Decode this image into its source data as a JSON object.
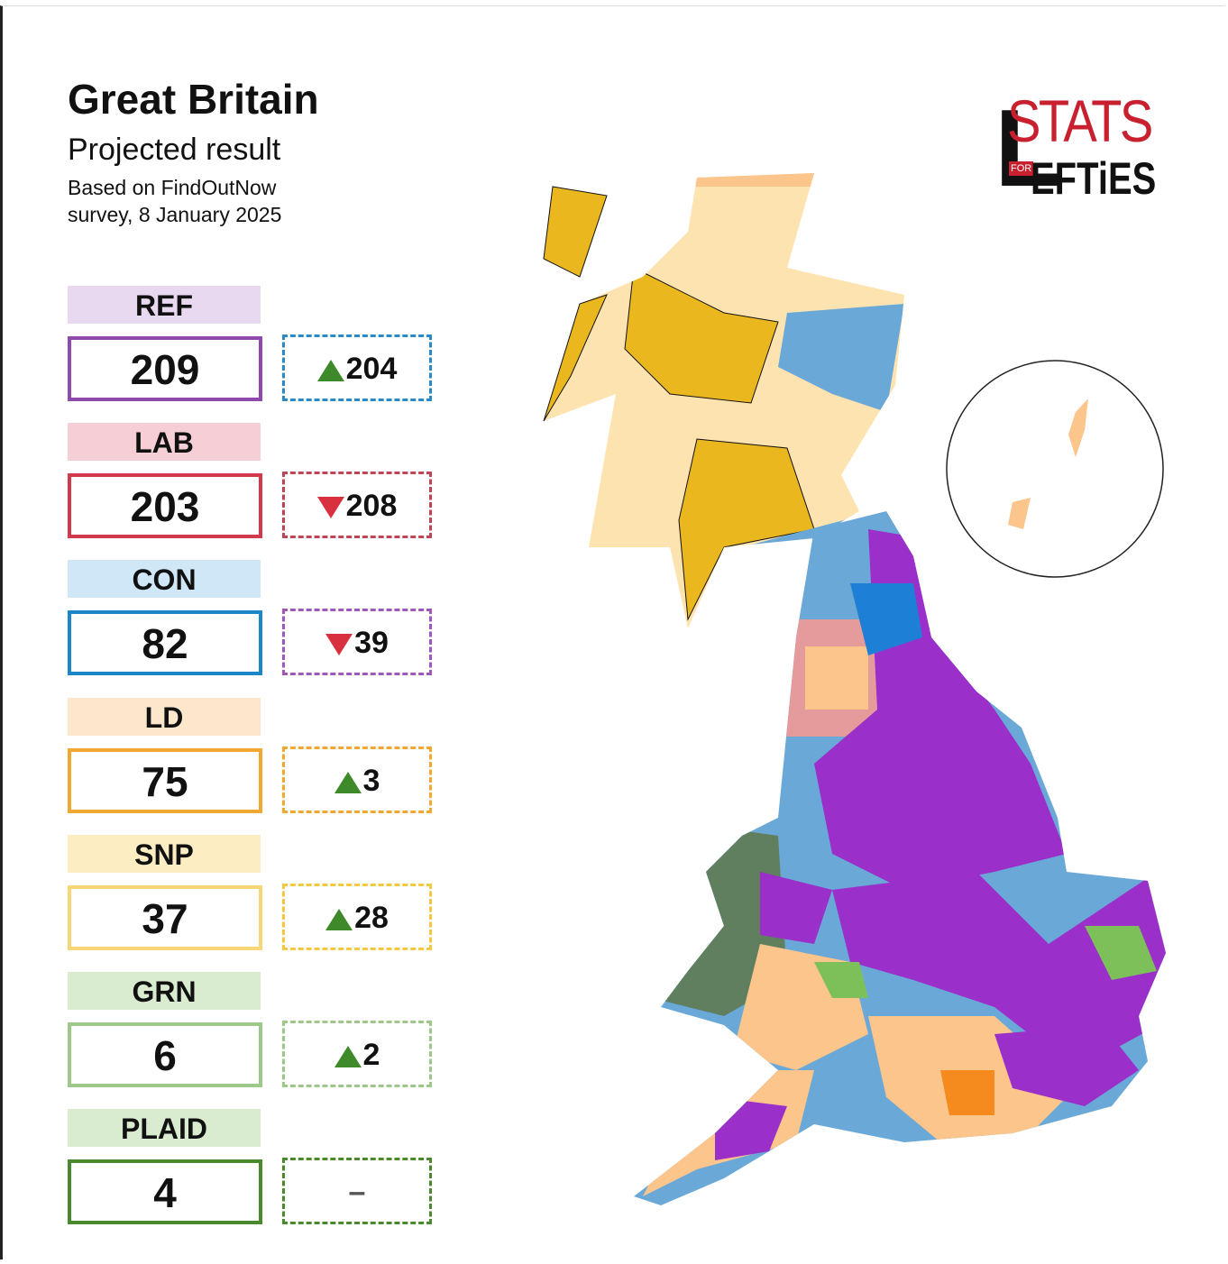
{
  "header": {
    "title": "Great Britain",
    "subtitle": "Projected result",
    "source_line1": "Based on FindOutNow",
    "source_line2": "survey, 8 January 2025"
  },
  "logo": {
    "big_letter": "L",
    "top": "STATS",
    "small": "FOR",
    "bottom": "EFTiES"
  },
  "parties": [
    {
      "name": "REF",
      "seats": 209,
      "change": 204,
      "direction": "up",
      "label_bg": "#e8d9f0",
      "color": "#8f4aab",
      "change_color": "#2a8ac6"
    },
    {
      "name": "LAB",
      "seats": 203,
      "change": 208,
      "direction": "down",
      "label_bg": "#f5cfd5",
      "color": "#d03a4b",
      "change_color": "#c04455"
    },
    {
      "name": "CON",
      "seats": 82,
      "change": 39,
      "direction": "down",
      "label_bg": "#d0e7f7",
      "color": "#1b86c8",
      "change_color": "#a057b8"
    },
    {
      "name": "LD",
      "seats": 75,
      "change": 3,
      "direction": "up",
      "label_bg": "#fde7cc",
      "color": "#f0a830",
      "change_color": "#f0a830"
    },
    {
      "name": "SNP",
      "seats": 37,
      "change": 28,
      "direction": "up",
      "label_bg": "#fdedc2",
      "color": "#f7d775",
      "change_color": "#f5c842"
    },
    {
      "name": "GRN",
      "seats": 6,
      "change": 2,
      "direction": "up",
      "label_bg": "#d9ecd0",
      "color": "#9dc88a",
      "change_color": "#9dc88a"
    },
    {
      "name": "PLAID",
      "seats": 4,
      "change": "–",
      "direction": "none",
      "label_bg": "#d9ecd0",
      "color": "#4a8a2e",
      "change_color": "#4a8a2e"
    }
  ]
}
